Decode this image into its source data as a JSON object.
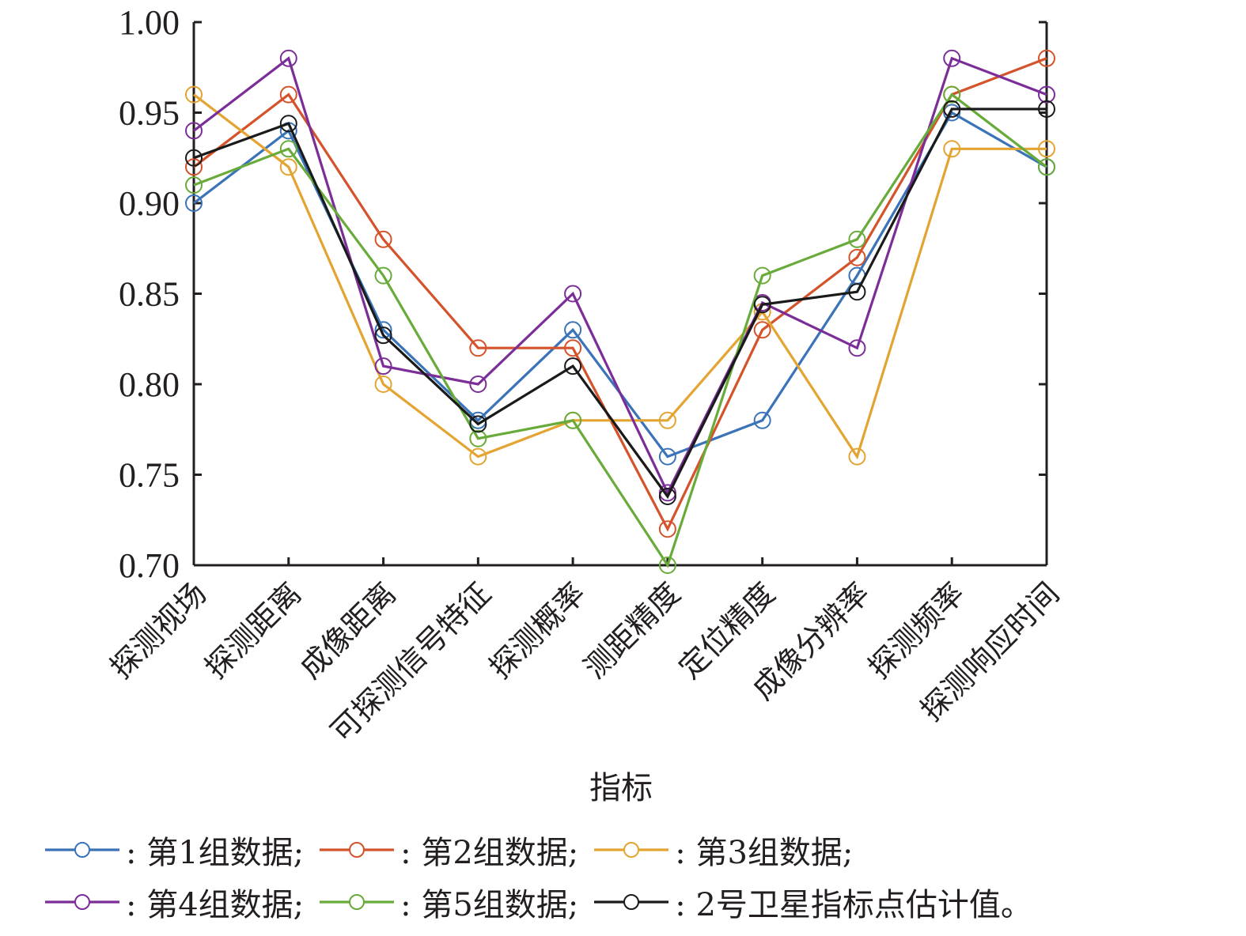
{
  "chart_data": {
    "type": "line",
    "title": "",
    "xlabel": "指标",
    "ylabel": "",
    "ylim": [
      0.7,
      1.0
    ],
    "yticks": [
      "0.70",
      "0.75",
      "0.80",
      "0.85",
      "0.90",
      "0.95",
      "1.00"
    ],
    "grid": false,
    "legend_position": "bottom",
    "categories": [
      "探测视场",
      "探测距离",
      "成像距离",
      "可探测信号特征",
      "探测概率",
      "测距精度",
      "定位精度",
      "成像分辨率",
      "探测频率",
      "探测响应时间"
    ],
    "series": [
      {
        "name": "第1组数据",
        "color": "#3a73b8",
        "values": [
          0.9,
          0.94,
          0.83,
          0.78,
          0.83,
          0.76,
          0.78,
          0.86,
          0.95,
          0.92
        ]
      },
      {
        "name": "第2组数据",
        "color": "#d4532a",
        "values": [
          0.92,
          0.96,
          0.88,
          0.82,
          0.82,
          0.72,
          0.83,
          0.87,
          0.96,
          0.98
        ]
      },
      {
        "name": "第3组数据",
        "color": "#e3a431",
        "values": [
          0.96,
          0.92,
          0.8,
          0.76,
          0.78,
          0.78,
          0.84,
          0.76,
          0.93,
          0.93
        ]
      },
      {
        "name": "第4组数据",
        "color": "#7b2d98",
        "values": [
          0.94,
          0.98,
          0.81,
          0.8,
          0.85,
          0.74,
          0.845,
          0.82,
          0.98,
          0.96
        ]
      },
      {
        "name": "第5组数据",
        "color": "#69ab3a",
        "values": [
          0.91,
          0.93,
          0.86,
          0.77,
          0.78,
          0.7,
          0.86,
          0.88,
          0.96,
          0.92
        ]
      },
      {
        "name": "2号卫星指标点估计值",
        "color": "#1a1a1a",
        "values": [
          0.925,
          0.944,
          0.827,
          0.778,
          0.81,
          0.738,
          0.844,
          0.851,
          0.952,
          0.952
        ]
      }
    ]
  },
  "legend": {
    "rows": [
      [
        {
          "label": ": 第1组数据;",
          "series": 0
        },
        {
          "label": ": 第2组数据;",
          "series": 1
        },
        {
          "label": ": 第3组数据;",
          "series": 2
        }
      ],
      [
        {
          "label": ": 第4组数据;",
          "series": 3
        },
        {
          "label": ": 第5组数据;",
          "series": 4
        },
        {
          "label": ": 2号卫星指标点估计值。",
          "series": 5
        }
      ]
    ]
  }
}
